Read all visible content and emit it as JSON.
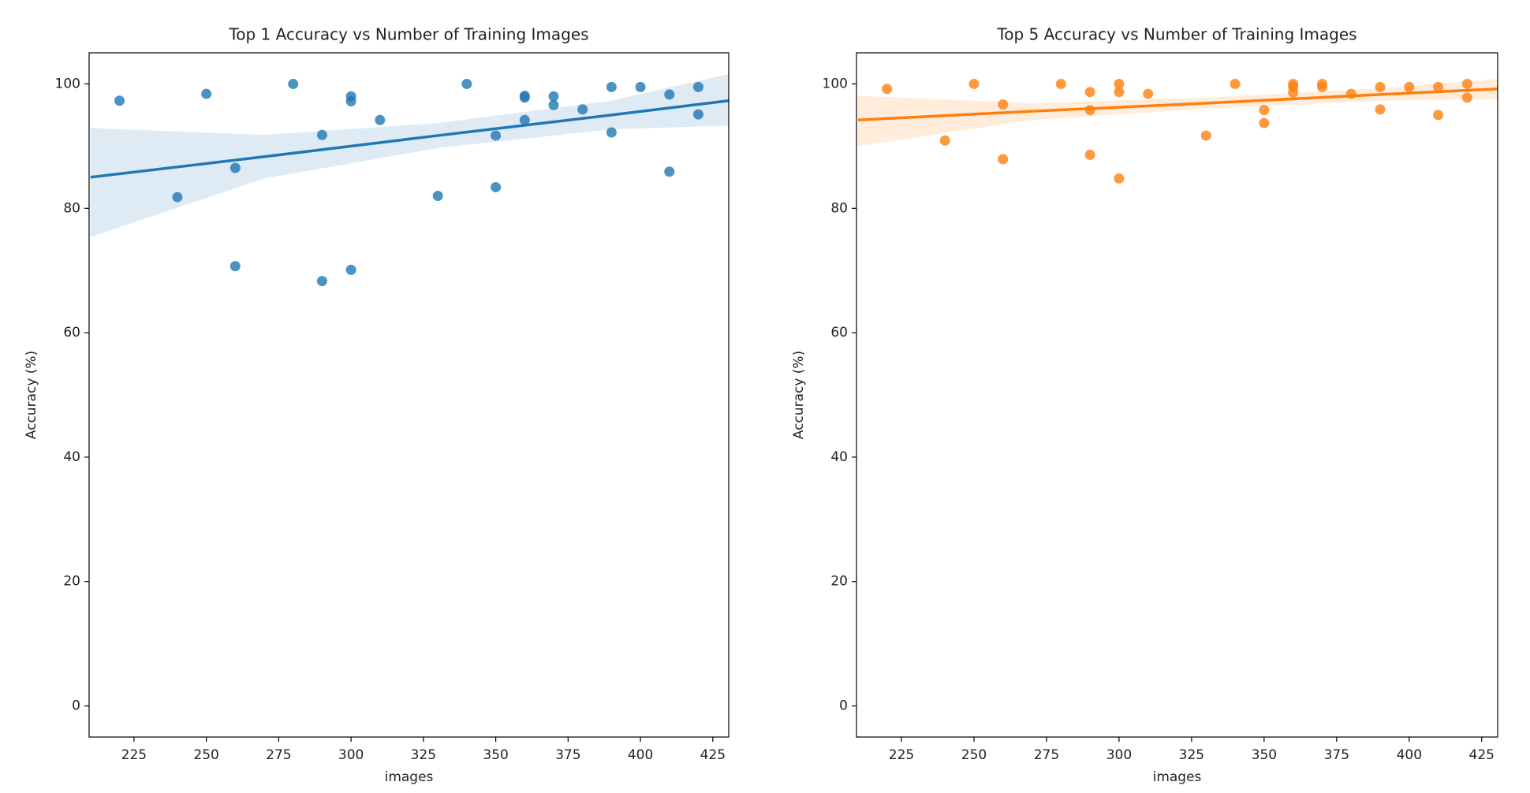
{
  "chart_data": [
    {
      "type": "scatter",
      "title": "Top 1 Accuracy vs Number of Training Images",
      "x_label": "images",
      "y_label": "Accuracy (%)",
      "color": "#1f77b4",
      "x": [
        220,
        240,
        250,
        260,
        260,
        280,
        290,
        290,
        300,
        300,
        300,
        310,
        330,
        340,
        350,
        350,
        360,
        360,
        360,
        370,
        370,
        380,
        390,
        390,
        400,
        410,
        410,
        420,
        420
      ],
      "values": [
        97.3,
        81.8,
        98.4,
        86.5,
        70.7,
        100,
        91.8,
        68.3,
        98,
        97.2,
        70.1,
        94.2,
        82,
        100,
        91.7,
        83.4,
        98.1,
        97.8,
        94.2,
        98,
        96.6,
        95.9,
        99.5,
        92.2,
        99.5,
        98.3,
        85.9,
        99.5,
        95.1
      ],
      "fit": {
        "x": [
          210,
          270,
          330,
          390,
          430.5
        ],
        "values": [
          85,
          88.3,
          91.7,
          95,
          97.3
        ],
        "lower": [
          75.4,
          84.8,
          89.7,
          92.7,
          93.3
        ],
        "upper": [
          92.9,
          91.8,
          93.7,
          97.3,
          101.6
        ]
      },
      "xlim": [
        209.5,
        430.5
      ],
      "ylim": [
        -5,
        105
      ],
      "xticks": [
        225,
        250,
        275,
        300,
        325,
        350,
        375,
        400,
        425
      ],
      "yticks": [
        0,
        20,
        40,
        60,
        80,
        100
      ]
    },
    {
      "type": "scatter",
      "title": "Top 5 Accuracy vs Number of Training Images",
      "x_label": "images",
      "y_label": "Accuracy (%)",
      "color": "#ff7f0e",
      "x": [
        220,
        240,
        250,
        260,
        260,
        280,
        290,
        290,
        290,
        300,
        300,
        300,
        310,
        330,
        340,
        350,
        350,
        360,
        360,
        360,
        370,
        370,
        380,
        390,
        390,
        400,
        410,
        410,
        420,
        420
      ],
      "values": [
        99.2,
        90.9,
        100,
        96.7,
        87.9,
        100,
        98.7,
        95.8,
        88.6,
        100,
        98.7,
        84.8,
        98.4,
        91.7,
        100,
        95.8,
        93.7,
        100,
        99.5,
        98.6,
        100,
        99.5,
        98.4,
        99.5,
        95.9,
        99.5,
        99.5,
        95,
        100,
        97.8
      ],
      "fit": {
        "x": [
          210,
          270,
          330,
          390,
          430.5
        ],
        "values": [
          94.2,
          95.6,
          96.9,
          98.3,
          99.2
        ],
        "lower": [
          90,
          94.2,
          96,
          97.3,
          97.5
        ],
        "upper": [
          98.1,
          96.9,
          97.8,
          99.3,
          100.8
        ]
      },
      "xlim": [
        209.5,
        430.5
      ],
      "ylim": [
        -5,
        105
      ],
      "xticks": [
        225,
        250,
        275,
        300,
        325,
        350,
        375,
        400,
        425
      ],
      "yticks": [
        0,
        20,
        40,
        60,
        80,
        100
      ]
    }
  ]
}
